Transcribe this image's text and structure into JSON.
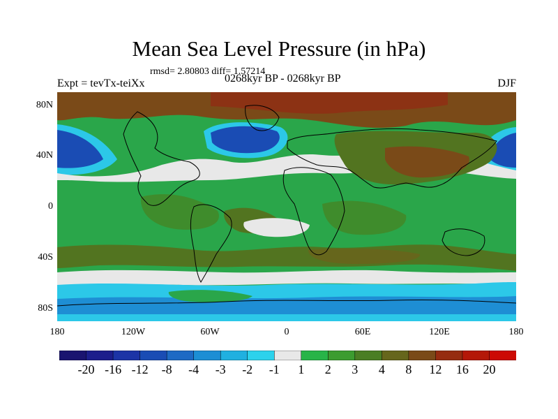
{
  "header": {
    "title": "Mean Sea Level Pressure (in hPa)",
    "stats": "rmsd= 2.80803 diff= 1.57214",
    "expt": "Expt = tevTx-teiXx",
    "period": "0268kyr BP - 0268kyr BP",
    "season": "DJF"
  },
  "axes": {
    "lat_labels": [
      "80N",
      "40N",
      "0",
      "40S",
      "80S"
    ],
    "lon_labels": [
      "180",
      "120W",
      "60W",
      "0",
      "60E",
      "120E",
      "180"
    ]
  },
  "colorbar": {
    "labels": [
      "-20",
      "-16",
      "-12",
      "-8",
      "-4",
      "-3",
      "-2",
      "-1",
      "1",
      "2",
      "3",
      "4",
      "8",
      "12",
      "16",
      "20"
    ],
    "colors": [
      "#1a1470",
      "#1c1e8c",
      "#1c34a6",
      "#1a4cb4",
      "#1e6ac4",
      "#1c8ed4",
      "#20b0e0",
      "#2cd2ec",
      "#e8e8e8",
      "#28b448",
      "#3c9c30",
      "#4a7e24",
      "#66661c",
      "#7a4a18",
      "#962c10",
      "#b41808",
      "#cc0a04"
    ]
  },
  "map": {
    "colors": {
      "background_green": "#2aa64a",
      "mid_green": "#3f8c2c",
      "dark_olive": "#527420",
      "brown": "#7a4a18",
      "red_brown": "#8c3214",
      "white": "#e8e8e8",
      "light_blue": "#2cc8e8",
      "blue": "#1e8ed4",
      "dark_blue": "#1a4cb4",
      "navy": "#1c2a96"
    }
  }
}
